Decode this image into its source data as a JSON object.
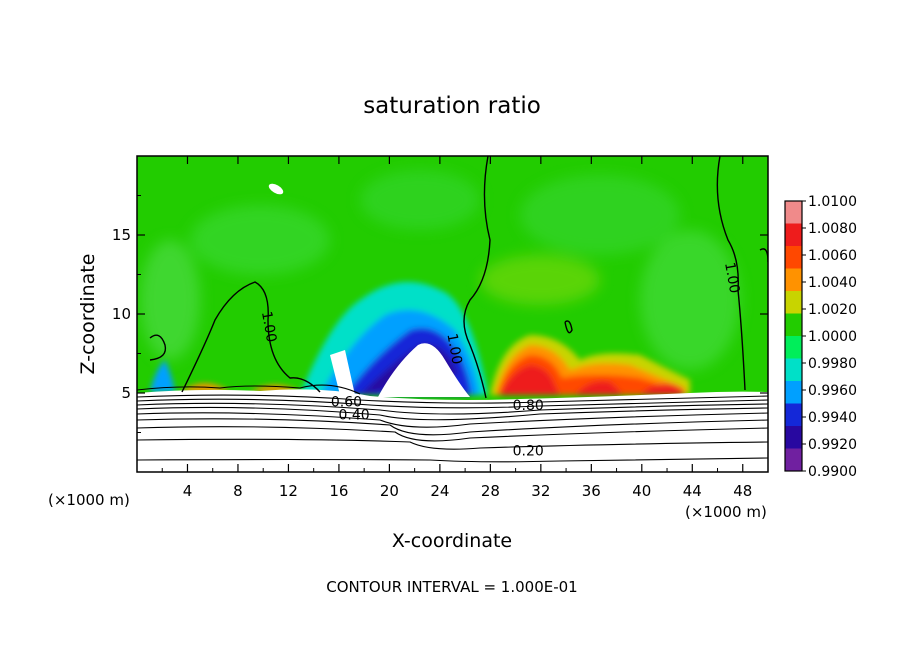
{
  "chart_data": {
    "type": "heatmap",
    "title": "saturation ratio",
    "xlabel": "X-coordinate",
    "ylabel": "Z-coordinate",
    "x_unit_left": "(×1000 m)",
    "x_unit_right": "(×1000 m)",
    "footer": "CONTOUR INTERVAL = 1.000E-01",
    "xlim": [
      0,
      50
    ],
    "ylim": [
      0,
      20
    ],
    "x_ticks": [
      4,
      8,
      12,
      16,
      20,
      24,
      28,
      32,
      36,
      40,
      44,
      48
    ],
    "y_ticks": [
      5,
      10,
      15
    ],
    "colorbar": {
      "labels": [
        "1.0100",
        "1.0080",
        "1.0060",
        "1.0040",
        "1.0020",
        "1.0000",
        "0.9980",
        "0.9960",
        "0.9940",
        "0.9920",
        "0.9900"
      ],
      "colors": [
        "#f08a8a",
        "#ee1c1c",
        "#ff4800",
        "#ff9200",
        "#c8d400",
        "#22cc00",
        "#00ee5a",
        "#00e0c8",
        "#00a0ff",
        "#1428d8",
        "#2808a0",
        "#7020a0"
      ]
    },
    "contour_labels": [
      {
        "text": "1.00",
        "x": 10.5,
        "z": 9.2,
        "rotate": 80
      },
      {
        "text": "1.00",
        "x": 25.2,
        "z": 7.8,
        "rotate": 80
      },
      {
        "text": "1.00",
        "x": 47.2,
        "z": 12.3,
        "rotate": 80
      },
      {
        "text": "0.60",
        "x": 16.6,
        "z": 4.45,
        "rotate": 0
      },
      {
        "text": "0.40",
        "x": 17.2,
        "z": 3.65,
        "rotate": 0
      },
      {
        "text": "0.80",
        "x": 31.0,
        "z": 4.25,
        "rotate": 0
      },
      {
        "text": "0.20",
        "x": 31.0,
        "z": 1.35,
        "rotate": 0
      }
    ]
  }
}
